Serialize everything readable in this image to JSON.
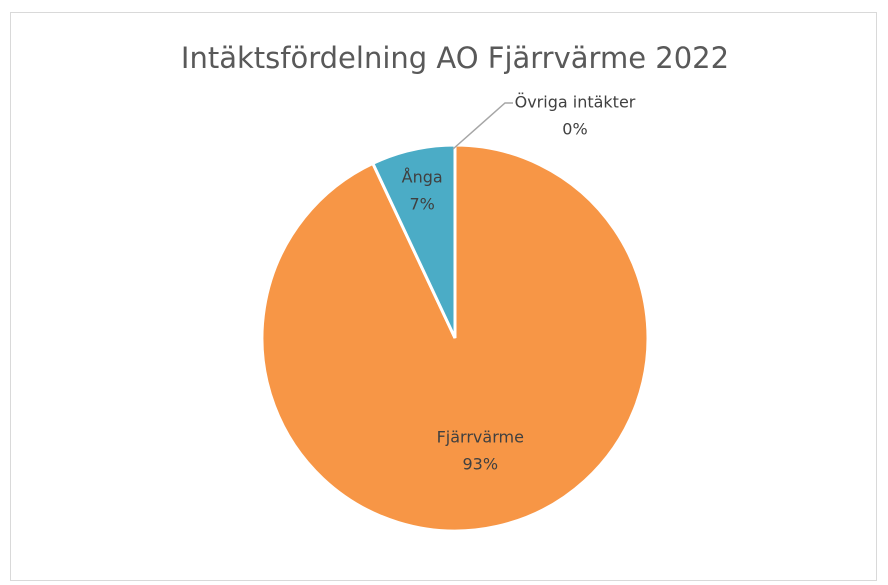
{
  "chart_data": {
    "type": "pie",
    "title": "Intäktsfördelning AO Fjärrvärme 2022",
    "categories": [
      "Fjärrvärme",
      "Ånga",
      "Övriga intäkter"
    ],
    "values": [
      93,
      7,
      0
    ],
    "value_labels": [
      "93%",
      "7%",
      "0%"
    ],
    "colors": [
      "#f79646",
      "#4bacc6",
      "#9bbb59"
    ]
  }
}
